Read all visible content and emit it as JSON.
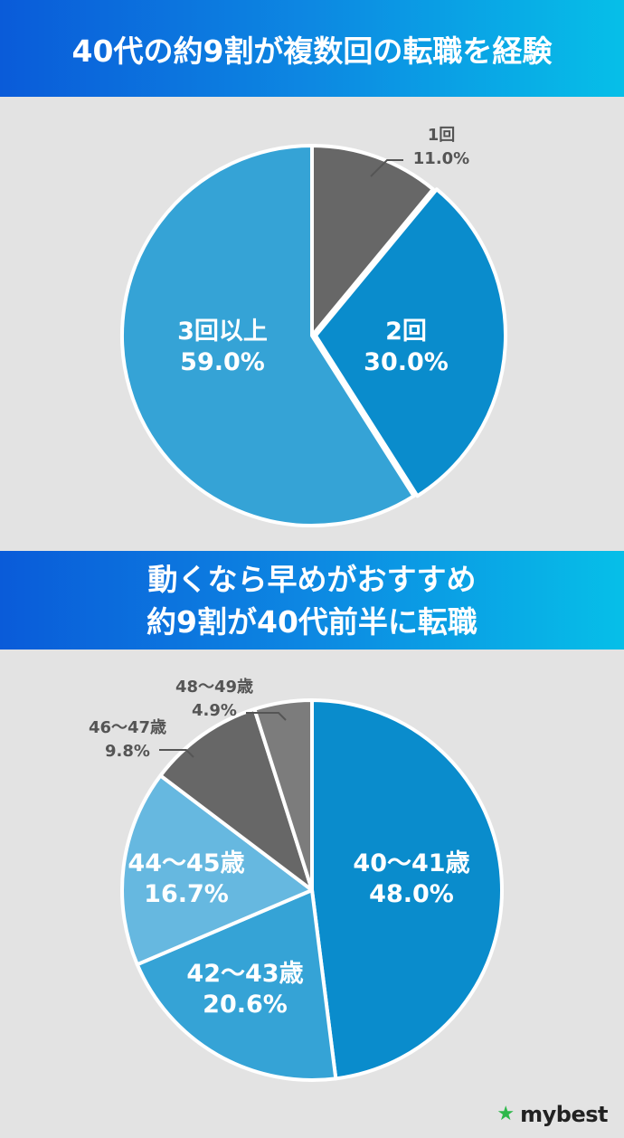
{
  "banner1": {
    "title": "40代の約9割が複数回の転職を経験"
  },
  "banner2": {
    "line1": "動くなら早めがおすすめ",
    "line2": "約9割が40代前半に転職"
  },
  "chart_data": [
    {
      "type": "pie",
      "title": "",
      "slices": [
        {
          "label": "1回",
          "value": 11.0,
          "value_text": "11.0%",
          "color": "#676767",
          "label_position": "outside"
        },
        {
          "label": "2回",
          "value": 30.0,
          "value_text": "30.0%",
          "color": "#0a8ccc",
          "label_position": "inside"
        },
        {
          "label": "3回以上",
          "value": 59.0,
          "value_text": "59.0%",
          "color": "#35a3d6",
          "label_position": "inside"
        }
      ]
    },
    {
      "type": "pie",
      "title": "",
      "slices": [
        {
          "label": "40〜41歳",
          "value": 48.0,
          "value_text": "48.0%",
          "color": "#0a8ccc",
          "label_position": "inside"
        },
        {
          "label": "42〜43歳",
          "value": 20.6,
          "value_text": "20.6%",
          "color": "#35a3d6",
          "label_position": "inside"
        },
        {
          "label": "44〜45歳",
          "value": 16.7,
          "value_text": "16.7%",
          "color": "#66b8e0",
          "label_position": "inside"
        },
        {
          "label": "46〜47歳",
          "value": 9.8,
          "value_text": "9.8%",
          "color": "#676767",
          "label_position": "outside"
        },
        {
          "label": "48〜49歳",
          "value": 4.9,
          "value_text": "4.9%",
          "color": "#7c7c7c",
          "label_position": "outside"
        }
      ]
    }
  ],
  "logo": {
    "icon": "star-icon",
    "text": "mybest"
  }
}
